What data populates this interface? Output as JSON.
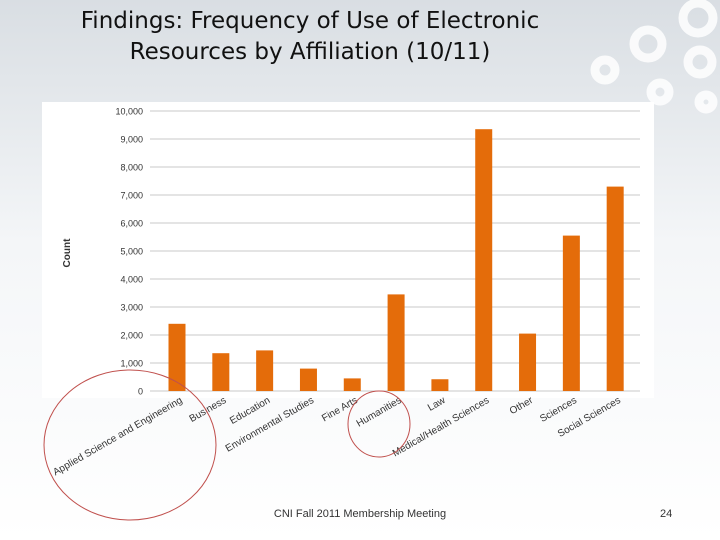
{
  "slide": {
    "title_line1": "Findings:  Frequency of Use of Electronic",
    "title_line2": "Resources by Affiliation (10/11)",
    "footer": "CNI Fall 2011 Membership Meeting",
    "page_number": "24"
  },
  "colors": {
    "bar": "#e46c0a",
    "grid": "#c8c8c8",
    "annotation_circle": "#c0504d"
  },
  "chart_data": {
    "type": "bar",
    "title": "",
    "xlabel": "",
    "ylabel": "Count",
    "ylim": [
      0,
      10000
    ],
    "yticks": [
      "0",
      "1,000",
      "2,000",
      "3,000",
      "4,000",
      "5,000",
      "6,000",
      "7,000",
      "8,000",
      "9,000",
      "10,000"
    ],
    "categories": [
      "Applied Science and Engineering",
      "Business",
      "Education",
      "Environmental Studies",
      "Fine Arts",
      "Humanities",
      "Law",
      "Medical/Health Sciences",
      "Other",
      "Sciences",
      "Social Sciences"
    ],
    "values": [
      2400,
      1350,
      1450,
      800,
      450,
      3450,
      420,
      9350,
      2050,
      5550,
      7300
    ],
    "grid": true,
    "annotations": [
      "circle around Applied Science and Engineering label",
      "circle around Humanities label"
    ]
  }
}
